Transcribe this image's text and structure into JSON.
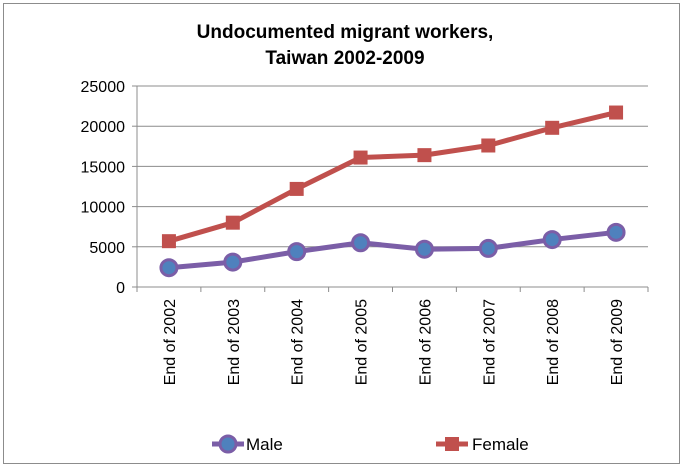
{
  "chart_data": {
    "type": "line",
    "title_lines": [
      "Undocumented migrant workers,",
      "Taiwan 2002-2009"
    ],
    "categories": [
      "End of 2002",
      "End of 2003",
      "End of 2004",
      "End of 2005",
      "End of 2006",
      "End of 2007",
      "End of 2008",
      "End of 2009"
    ],
    "ylim": [
      0,
      25000
    ],
    "yticks": [
      0,
      5000,
      10000,
      15000,
      20000,
      25000
    ],
    "grid": true,
    "legend_position": "bottom",
    "series": [
      {
        "name": "Male",
        "values": [
          2400,
          3100,
          4400,
          5500,
          4700,
          4800,
          5900,
          6800
        ],
        "color": "#7b5ea7",
        "line_color": "#7b5ea7",
        "marker_fill": "#4f81bd",
        "marker": "circle"
      },
      {
        "name": "Female",
        "values": [
          5700,
          8000,
          12200,
          16100,
          16400,
          17600,
          19800,
          21700
        ],
        "color": "#c0504d",
        "line_color": "#c0504d",
        "marker_fill": "#c0504d",
        "marker": "square"
      }
    ]
  }
}
